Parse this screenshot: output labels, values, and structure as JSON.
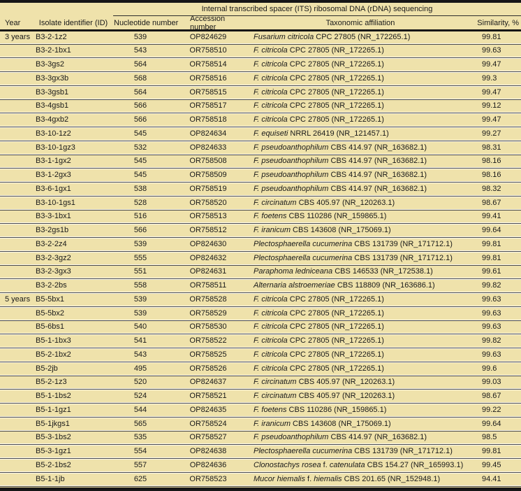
{
  "colors": {
    "table_bg": "#efe2ab",
    "row_rule": "#4a4a4a",
    "heavy_rule": "#161616",
    "text": "#191919"
  },
  "table": {
    "spanning_header": "Internal transcribed spacer (ITS) ribosomal DNA (rDNA) sequencing",
    "columns": [
      "Year",
      "Isolate identifier (ID)",
      "Nucleotide number",
      "Accession number",
      "Taxonomic affiliation",
      "Similarity, %"
    ],
    "rows": [
      {
        "year": "3 years",
        "id": "B3-2-1z2",
        "nt": "539",
        "acc": "OP824629",
        "tax": [
          [
            "Fusarium citricola",
            1
          ],
          [
            " CPC 27805 (NR_172265.1)",
            0
          ]
        ],
        "sim": "99.81"
      },
      {
        "year": "",
        "id": "B3-2-1bx1",
        "nt": "543",
        "acc": "OR758510",
        "tax": [
          [
            "F. citricola",
            1
          ],
          [
            " CPC 27805 (NR_172265.1)",
            0
          ]
        ],
        "sim": "99.63"
      },
      {
        "year": "",
        "id": "B3-3gs2",
        "nt": "564",
        "acc": "OR758514",
        "tax": [
          [
            "F. citricola",
            1
          ],
          [
            " CPC 27805 (NR_172265.1)",
            0
          ]
        ],
        "sim": "99.47"
      },
      {
        "year": "",
        "id": "B3-3gx3b",
        "nt": "568",
        "acc": "OR758516",
        "tax": [
          [
            "F. citricola",
            1
          ],
          [
            " CPC 27805 (NR_172265.1)",
            0
          ]
        ],
        "sim": "99.3"
      },
      {
        "year": "",
        "id": "B3-3gsb1",
        "nt": "564",
        "acc": "OR758515",
        "tax": [
          [
            "F. citricola",
            1
          ],
          [
            " CPC 27805 (NR_172265.1)",
            0
          ]
        ],
        "sim": "99.47"
      },
      {
        "year": "",
        "id": "B3-4gsb1",
        "nt": "566",
        "acc": "OR758517",
        "tax": [
          [
            "F. citricola",
            1
          ],
          [
            " CPC 27805 (NR_172265.1)",
            0
          ]
        ],
        "sim": "99.12"
      },
      {
        "year": "",
        "id": "B3-4gxb2",
        "nt": "566",
        "acc": "OR758518",
        "tax": [
          [
            "F. citricola",
            1
          ],
          [
            " CPC 27805 (NR_172265.1)",
            0
          ]
        ],
        "sim": "99.47"
      },
      {
        "year": "",
        "id": "B3-10-1z2",
        "nt": "545",
        "acc": "OP824634",
        "tax": [
          [
            "F. equiseti",
            1
          ],
          [
            " NRRL 26419 (NR_121457.1)",
            0
          ]
        ],
        "sim": "99.27"
      },
      {
        "year": "",
        "id": "B3-10-1gz3",
        "nt": "532",
        "acc": "OP824633",
        "tax": [
          [
            "F. pseudoanthophilum",
            1
          ],
          [
            " CBS 414.97 (NR_163682.1)",
            0
          ]
        ],
        "sim": "98.31"
      },
      {
        "year": "",
        "id": "B3-1-1gx2",
        "nt": "545",
        "acc": "OR758508",
        "tax": [
          [
            "F. pseudoanthophilum",
            1
          ],
          [
            " CBS 414.97 (NR_163682.1)",
            0
          ]
        ],
        "sim": "98.16"
      },
      {
        "year": "",
        "id": "B3-1-2gx3",
        "nt": "545",
        "acc": "OR758509",
        "tax": [
          [
            "F. pseudoanthophilum",
            1
          ],
          [
            " CBS 414.97 (NR_163682.1)",
            0
          ]
        ],
        "sim": "98.16"
      },
      {
        "year": "",
        "id": "B3-6-1gx1",
        "nt": "538",
        "acc": "OR758519",
        "tax": [
          [
            "F. pseudoanthophilum",
            1
          ],
          [
            " CBS 414.97 (NR_163682.1)",
            0
          ]
        ],
        "sim": "98.32"
      },
      {
        "year": "",
        "id": "B3-10-1gs1",
        "nt": "528",
        "acc": "OR758520",
        "tax": [
          [
            "F. circinatum",
            1
          ],
          [
            " CBS 405.97 (NR_120263.1)",
            0
          ]
        ],
        "sim": "98.67"
      },
      {
        "year": "",
        "id": "B3-3-1bx1",
        "nt": "516",
        "acc": "OR758513",
        "tax": [
          [
            "F. foetens",
            1
          ],
          [
            " CBS 110286 (NR_159865.1)",
            0
          ]
        ],
        "sim": "99.41"
      },
      {
        "year": "",
        "id": "B3-2gs1b",
        "nt": "566",
        "acc": "OR758512",
        "tax": [
          [
            "F. iranicum",
            1
          ],
          [
            " CBS 143608 (NR_175069.1)",
            0
          ]
        ],
        "sim": "99.64"
      },
      {
        "year": "",
        "id": "B3-2-2z4",
        "nt": "539",
        "acc": "OP824630",
        "tax": [
          [
            "Plectosphaerella cucumerina",
            1
          ],
          [
            " CBS 131739 (NR_171712.1)",
            0
          ]
        ],
        "sim": "99.81"
      },
      {
        "year": "",
        "id": "B3-2-3gz2",
        "nt": "555",
        "acc": "OP824632",
        "tax": [
          [
            "Plectosphaerella cucumerina",
            1
          ],
          [
            " CBS 131739 (NR_171712.1)",
            0
          ]
        ],
        "sim": "99.81"
      },
      {
        "year": "",
        "id": "B3-2-3gx3",
        "nt": "551",
        "acc": "OP824631",
        "tax": [
          [
            "Paraphoma ledniceana",
            1
          ],
          [
            " CBS 146533 (NR_172538.1)",
            0
          ]
        ],
        "sim": "99.61"
      },
      {
        "year": "",
        "id": "B3-2-2bs",
        "nt": "558",
        "acc": "OR758511",
        "tax": [
          [
            "Alternaria alstroemeriae",
            1
          ],
          [
            " CBS 118809 (NR_163686.1)",
            0
          ]
        ],
        "sim": "99.82"
      },
      {
        "year": "5 years",
        "id": "B5-5bx1",
        "nt": "539",
        "acc": "OR758528",
        "tax": [
          [
            "F. citricola",
            1
          ],
          [
            " CPC 27805 (NR_172265.1)",
            0
          ]
        ],
        "sim": "99.63"
      },
      {
        "year": "",
        "id": "B5-5bx2",
        "nt": "539",
        "acc": "OR758529",
        "tax": [
          [
            "F. citricola",
            1
          ],
          [
            " CPC 27805 (NR_172265.1)",
            0
          ]
        ],
        "sim": "99.63"
      },
      {
        "year": "",
        "id": "B5-6bs1",
        "nt": "540",
        "acc": "OR758530",
        "tax": [
          [
            "F. citricola",
            1
          ],
          [
            " CPC 27805 (NR_172265.1)",
            0
          ]
        ],
        "sim": "99.63"
      },
      {
        "year": "",
        "id": "B5-1-1bx3",
        "nt": "541",
        "acc": "OR758522",
        "tax": [
          [
            "F. citricola",
            1
          ],
          [
            " CPC 27805 (NR_172265.1)",
            0
          ]
        ],
        "sim": "99.82"
      },
      {
        "year": "",
        "id": "B5-2-1bx2",
        "nt": "543",
        "acc": "OR758525",
        "tax": [
          [
            "F. citricola",
            1
          ],
          [
            " CPC 27805 (NR_172265.1)",
            0
          ]
        ],
        "sim": "99.63"
      },
      {
        "year": "",
        "id": "B5-2jb",
        "nt": "495",
        "acc": "OR758526",
        "tax": [
          [
            "F. citricola",
            1
          ],
          [
            " CPC 27805 (NR_172265.1)",
            0
          ]
        ],
        "sim": "99.6"
      },
      {
        "year": "",
        "id": "B5-2-1z3",
        "nt": "520",
        "acc": "OP824637",
        "tax": [
          [
            "F. circinatum",
            1
          ],
          [
            " CBS 405.97 (NR_120263.1)",
            0
          ]
        ],
        "sim": "99.03"
      },
      {
        "year": "",
        "id": "B5-1-1bs2",
        "nt": "524",
        "acc": "OR758521",
        "tax": [
          [
            "F. circinatum",
            1
          ],
          [
            " CBS 405.97 (NR_120263.1)",
            0
          ]
        ],
        "sim": "98.67"
      },
      {
        "year": "",
        "id": "B5-1-1gz1",
        "nt": "544",
        "acc": "OP824635",
        "tax": [
          [
            "F. foetens",
            1
          ],
          [
            " CBS 110286 (NR_159865.1)",
            0
          ]
        ],
        "sim": "99.22"
      },
      {
        "year": "",
        "id": "B5-1jkgs1",
        "nt": "565",
        "acc": "OR758524",
        "tax": [
          [
            "F. iranicum",
            1
          ],
          [
            " CBS 143608 (NR_175069.1)",
            0
          ]
        ],
        "sim": "99.64"
      },
      {
        "year": "",
        "id": "B5-3-1bs2",
        "nt": "535",
        "acc": "OR758527",
        "tax": [
          [
            "F. pseudoanthophilum",
            1
          ],
          [
            " CBS 414.97 (NR_163682.1)",
            0
          ]
        ],
        "sim": "98.5"
      },
      {
        "year": "",
        "id": "B5-3-1gz1",
        "nt": "554",
        "acc": "OP824638",
        "tax": [
          [
            "Plectosphaerella cucumerina",
            1
          ],
          [
            " CBS 131739 (NR_171712.1)",
            0
          ]
        ],
        "sim": "99.81"
      },
      {
        "year": "",
        "id": "B5-2-1bs2",
        "nt": "557",
        "acc": "OP824636",
        "tax": [
          [
            "Clonostachys rosea",
            1
          ],
          [
            " f. ",
            0
          ],
          [
            "catenulata",
            1
          ],
          [
            " CBS 154.27 (NR_165993.1)",
            0
          ]
        ],
        "sim": "99.45"
      },
      {
        "year": "",
        "id": "B5-1-1jb",
        "nt": "625",
        "acc": "OR758523",
        "tax": [
          [
            "Mucor hiemalis",
            1
          ],
          [
            " f. ",
            0
          ],
          [
            "hiemalis",
            1
          ],
          [
            " CBS 201.65 (NR_152948.1)",
            0
          ]
        ],
        "sim": "94.41"
      }
    ]
  }
}
